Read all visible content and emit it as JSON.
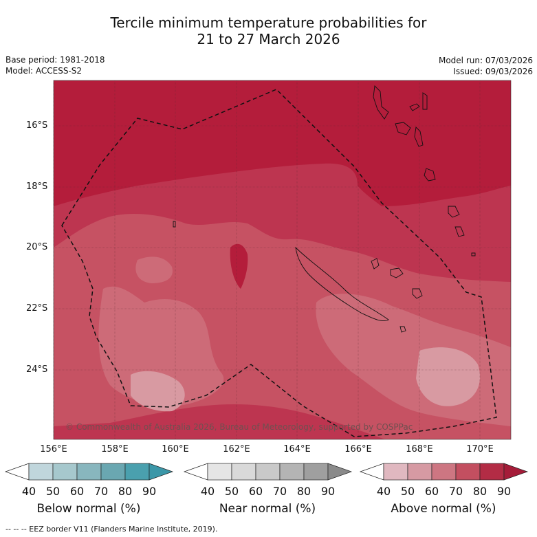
{
  "title": {
    "line1": "Tercile minimum temperature probabilities for",
    "line2": "21 to 27 March 2026"
  },
  "meta": {
    "base_period": "Base period: 1981-2018",
    "model": "Model: ACCESS-S2",
    "model_run": "Model run: 07/03/2026",
    "issued": "Issued: 09/03/2026"
  },
  "axes": {
    "lat_ticks": [
      "16°S",
      "18°S",
      "20°S",
      "22°S",
      "24°S"
    ],
    "lon_ticks": [
      "156°E",
      "158°E",
      "160°E",
      "162°E",
      "164°E",
      "166°E",
      "168°E",
      "170°E"
    ]
  },
  "copyright": "© Commonwealth of Australia 2026, Bureau of Meteorology, supported by COSPPac",
  "colorbars": [
    {
      "label": "Below normal (%)",
      "ticks": [
        "40",
        "50",
        "60",
        "70",
        "80",
        "90"
      ],
      "colors": [
        "#ffffff",
        "#c0d6dc",
        "#a6c8cd",
        "#88b6be",
        "#6aa7b1",
        "#4aa0ae",
        "#3b97a8"
      ]
    },
    {
      "label": "Near normal (%)",
      "ticks": [
        "40",
        "50",
        "60",
        "70",
        "80",
        "90"
      ],
      "colors": [
        "#ffffff",
        "#e5e5e5",
        "#d9d9d9",
        "#c9c9c9",
        "#b4b4b4",
        "#9f9f9f",
        "#8a8a8a"
      ]
    },
    {
      "label": "Above normal (%)",
      "ticks": [
        "40",
        "50",
        "60",
        "70",
        "80",
        "90"
      ],
      "colors": [
        "#ffffff",
        "#e0b8c0",
        "#d69aa3",
        "#cd7682",
        "#c34f60",
        "#b32c45",
        "#a51c39"
      ]
    }
  ],
  "footer": "-- -- -- EEZ border V11 (Flanders Marine Institute, 2019)."
}
